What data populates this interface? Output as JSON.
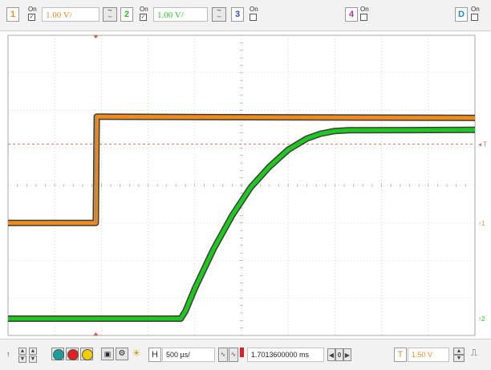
{
  "colors": {
    "ch1": "#f08a18",
    "ch2": "#1fc81f",
    "ch3": "#2a4bd7",
    "ch4": "#c02aa0",
    "digital": "#1a8ad0",
    "trigger_level": "#ee6a4a",
    "grid": "#b8b8b8",
    "cursor": "#7a6a6a"
  },
  "top_bar": {
    "channels": [
      {
        "number": "1",
        "on_label": "On",
        "scale": "1.00 V/",
        "enabled": true
      },
      {
        "number": "2",
        "on_label": "On",
        "scale": "1.00 V/",
        "enabled": true
      },
      {
        "number": "3",
        "on_label": "On",
        "enabled": false
      },
      {
        "number": "4",
        "on_label": "On",
        "enabled": false
      }
    ],
    "digital": {
      "label": "D",
      "on_label": "On",
      "enabled": false
    }
  },
  "bottom_bar": {
    "horizontal_label": "H",
    "timebase": "500 µs/",
    "delay": "1.7013600000 ms",
    "trigger_label": "T",
    "trigger_level": "1.50 V",
    "trigger_marker": "T",
    "color_buttons": [
      "#1a9f9f",
      "#e02020",
      "#f0d000"
    ]
  },
  "markers": {
    "trigger_right": "T",
    "ch1_ground": "1",
    "ch2_ground": "2"
  },
  "chart_data": {
    "type": "line",
    "xlabel": "",
    "ylabel": "",
    "x_unit": "ms (relative to screen left)",
    "xlim": [
      0,
      5
    ],
    "ylim": [
      -4,
      4
    ],
    "grid": true,
    "series": [
      {
        "x": [
          0,
          0.94,
          0.95,
          5
        ],
        "y": [
          -1.0,
          -1.0,
          1.83,
          1.8
        ]
      },
      {
        "x": [
          0,
          1.85,
          1.9,
          2.0,
          2.2,
          2.4,
          2.6,
          2.8,
          3.0,
          3.2,
          3.35,
          3.5,
          3.65,
          5
        ],
        "y": [
          -3.55,
          -3.55,
          -3.35,
          -2.75,
          -1.7,
          -0.8,
          -0.05,
          0.5,
          0.95,
          1.25,
          1.38,
          1.45,
          1.47,
          1.48
        ]
      }
    ],
    "trigger_level_y": 1.1
  }
}
